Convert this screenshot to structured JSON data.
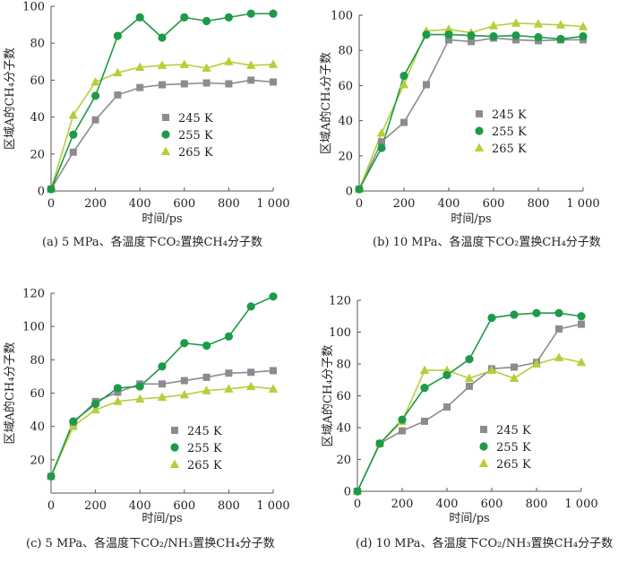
{
  "colors": {
    "245 K": "#8c8c8c",
    "255 K": "#1d9a47",
    "265 K": "#b5cf3a",
    "axis": "#555555"
  },
  "chart_data": [
    {
      "type": "line",
      "panel": "a",
      "caption": "(a) 5 MPa、各温度下CO₂置换CH₄分子数",
      "xlabel": "时间/ps",
      "ylabel": "区域A的CH₄分子数",
      "x": [
        0,
        100,
        200,
        300,
        400,
        500,
        600,
        700,
        800,
        900,
        1000
      ],
      "xlim": [
        0,
        1000
      ],
      "ylim": [
        0,
        100
      ],
      "xticks": [
        0,
        200,
        400,
        600,
        800,
        1000
      ],
      "xtick_labels": [
        "0",
        "200",
        "400",
        "600",
        "800",
        "1 000"
      ],
      "yticks": [
        0,
        20,
        40,
        60,
        80,
        100
      ],
      "legend": "center-right",
      "series": [
        {
          "name": "245 K",
          "marker": "square",
          "values": [
            1,
            21,
            38.5,
            52,
            56,
            57.5,
            58,
            58.5,
            58,
            60,
            59
          ]
        },
        {
          "name": "255 K",
          "marker": "circle",
          "values": [
            1,
            30.5,
            51.5,
            84,
            94,
            83,
            94,
            92,
            94,
            96,
            96
          ]
        },
        {
          "name": "265 K",
          "marker": "triangle",
          "values": [
            1,
            41,
            59,
            64,
            67,
            68,
            68.5,
            66.5,
            70,
            68,
            68.5
          ]
        }
      ]
    },
    {
      "type": "line",
      "panel": "b",
      "caption": "(b) 10 MPa、各温度下CO₂置换CH₄分子数",
      "xlabel": "时间/ps",
      "ylabel": "区域A的CH₄分子数",
      "x": [
        0,
        100,
        200,
        300,
        400,
        500,
        600,
        700,
        800,
        900,
        1000
      ],
      "xlim": [
        0,
        1000
      ],
      "ylim": [
        0,
        100
      ],
      "xticks": [
        0,
        200,
        400,
        600,
        800,
        1000
      ],
      "xtick_labels": [
        "0",
        "200",
        "400",
        "600",
        "800",
        "1 000"
      ],
      "yticks": [
        0,
        20,
        40,
        60,
        80,
        100
      ],
      "legend": "center-right",
      "series": [
        {
          "name": "245 K",
          "marker": "square",
          "values": [
            1,
            28,
            39,
            60.5,
            86,
            85,
            87,
            86,
            85.5,
            86,
            86
          ]
        },
        {
          "name": "255 K",
          "marker": "circle",
          "values": [
            1,
            24.5,
            65.5,
            89,
            89,
            88.5,
            88,
            88.5,
            87.5,
            86.5,
            88
          ]
        },
        {
          "name": "265 K",
          "marker": "triangle",
          "values": [
            1,
            33,
            60.5,
            91,
            92,
            90,
            94,
            95.5,
            95,
            94.5,
            93.5
          ]
        }
      ]
    },
    {
      "type": "line",
      "panel": "c",
      "caption": "(c) 5 MPa、各温度下CO₂/NH₃置换CH₄分子数",
      "xlabel": "时间/ps",
      "ylabel": "区域A的CH₄分子数",
      "x": [
        0,
        100,
        200,
        300,
        400,
        500,
        600,
        700,
        800,
        900,
        1000
      ],
      "xlim": [
        0,
        1000
      ],
      "ylim": [
        0,
        120
      ],
      "xticks": [
        0,
        200,
        400,
        600,
        800,
        1000
      ],
      "xtick_labels": [
        "0",
        "200",
        "400",
        "600",
        "800",
        "1 000"
      ],
      "yticks": [
        20,
        40,
        60,
        80,
        100,
        120
      ],
      "legend": "bottom-right",
      "series": [
        {
          "name": "245 K",
          "marker": "square",
          "values": [
            10,
            42,
            55,
            60.5,
            65.5,
            65.5,
            67.5,
            69.5,
            72,
            72.5,
            73.5
          ]
        },
        {
          "name": "255 K",
          "marker": "circle",
          "values": [
            10,
            43,
            53.5,
            63,
            64,
            76,
            90,
            88.5,
            94,
            112,
            118
          ]
        },
        {
          "name": "265 K",
          "marker": "triangle",
          "values": [
            10,
            40,
            50,
            55,
            56.5,
            57.5,
            59,
            61.5,
            62.5,
            64,
            62.5
          ]
        }
      ]
    },
    {
      "type": "line",
      "panel": "d",
      "caption": "(d) 10 MPa、各温度下CO₂/NH₃置换CH₄分子数",
      "xlabel": "时间/ps",
      "ylabel": "区域A的CH₄分子数",
      "x": [
        0,
        100,
        200,
        300,
        400,
        500,
        600,
        700,
        800,
        900,
        1000
      ],
      "xlim": [
        0,
        1000
      ],
      "ylim": [
        0,
        120
      ],
      "xticks": [
        0,
        200,
        400,
        600,
        800,
        1000
      ],
      "xtick_labels": [
        "0",
        "200",
        "400",
        "600",
        "800",
        "1 000"
      ],
      "yticks": [
        0,
        20,
        40,
        60,
        80,
        100,
        120
      ],
      "legend": "bottom-right",
      "series": [
        {
          "name": "245 K",
          "marker": "square",
          "values": [
            0,
            30,
            38,
            44,
            53,
            66,
            77,
            78,
            81,
            102,
            105
          ]
        },
        {
          "name": "255 K",
          "marker": "circle",
          "values": [
            0,
            30,
            45,
            65,
            73,
            83,
            109,
            111,
            112,
            112,
            110
          ]
        },
        {
          "name": "265 K",
          "marker": "triangle",
          "values": [
            0,
            30,
            44,
            76,
            76,
            71,
            76,
            71,
            80,
            84,
            81
          ]
        }
      ]
    }
  ]
}
